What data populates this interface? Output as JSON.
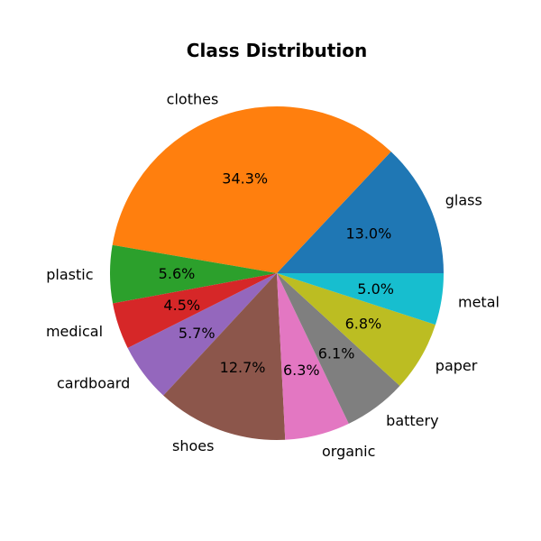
{
  "chart_data": {
    "type": "pie",
    "title": "Class Distribution",
    "start_angle_deg": 0,
    "direction": "counterclockwise",
    "legend": "none",
    "slices": [
      {
        "label": "glass",
        "value": 13.0,
        "pct_label": "13.0%",
        "color": "#1f77b4"
      },
      {
        "label": "clothes",
        "value": 34.3,
        "pct_label": "34.3%",
        "color": "#ff7f0e"
      },
      {
        "label": "plastic",
        "value": 5.6,
        "pct_label": "5.6%",
        "color": "#2ca02c"
      },
      {
        "label": "medical",
        "value": 4.5,
        "pct_label": "4.5%",
        "color": "#d62728"
      },
      {
        "label": "cardboard",
        "value": 5.7,
        "pct_label": "5.7%",
        "color": "#9467bd"
      },
      {
        "label": "shoes",
        "value": 12.7,
        "pct_label": "12.7%",
        "color": "#8c564b"
      },
      {
        "label": "organic",
        "value": 6.3,
        "pct_label": "6.3%",
        "color": "#e377c2"
      },
      {
        "label": "battery",
        "value": 6.1,
        "pct_label": "6.1%",
        "color": "#7f7f7f"
      },
      {
        "label": "paper",
        "value": 6.8,
        "pct_label": "6.8%",
        "color": "#bcbd22"
      },
      {
        "label": "metal",
        "value": 5.0,
        "pct_label": "5.0%",
        "color": "#17becf"
      }
    ]
  }
}
